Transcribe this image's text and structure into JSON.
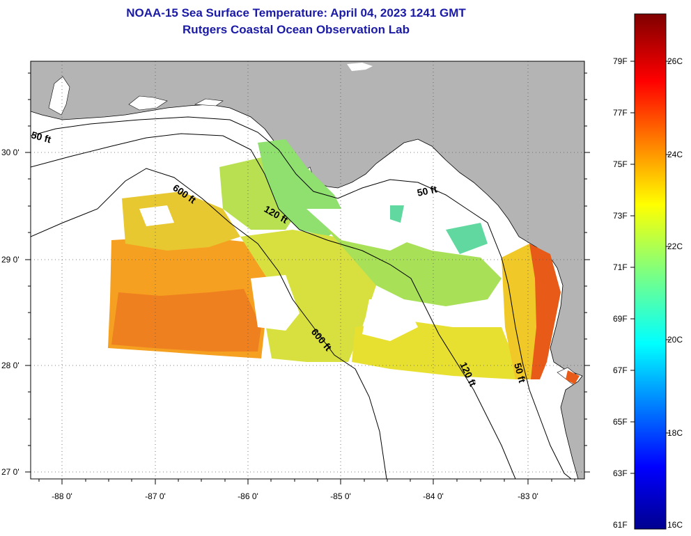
{
  "header": {
    "title": "NOAA-15 Sea Surface Temperature:  April 04, 2023 1241 GMT",
    "subtitle": "Rutgers Coastal Ocean Observation Lab"
  },
  "axes": {
    "lon_labels": [
      "-88 0'",
      "-87 0'",
      "-86 0'",
      "-85 0'",
      "-84 0'",
      "-83 0'"
    ],
    "lat_labels": [
      "30 0'",
      "29 0'",
      "28 0'",
      "27 0'"
    ]
  },
  "contours": {
    "labels": [
      "50 ft",
      "600 ft",
      "120 ft",
      "50 ft",
      "600 ft",
      "120 ft",
      "50 ft"
    ]
  },
  "colorbar": {
    "fahrenheit": [
      "79F",
      "77F",
      "75F",
      "73F",
      "71F",
      "69F",
      "67F",
      "65F",
      "63F",
      "61F"
    ],
    "celsius": [
      "26C",
      "24C",
      "22C",
      "20C",
      "18C",
      "16C"
    ]
  },
  "colors": {
    "land": "#b4b4b4",
    "title": "#1a1aa6",
    "no_data": "#ffffff"
  }
}
